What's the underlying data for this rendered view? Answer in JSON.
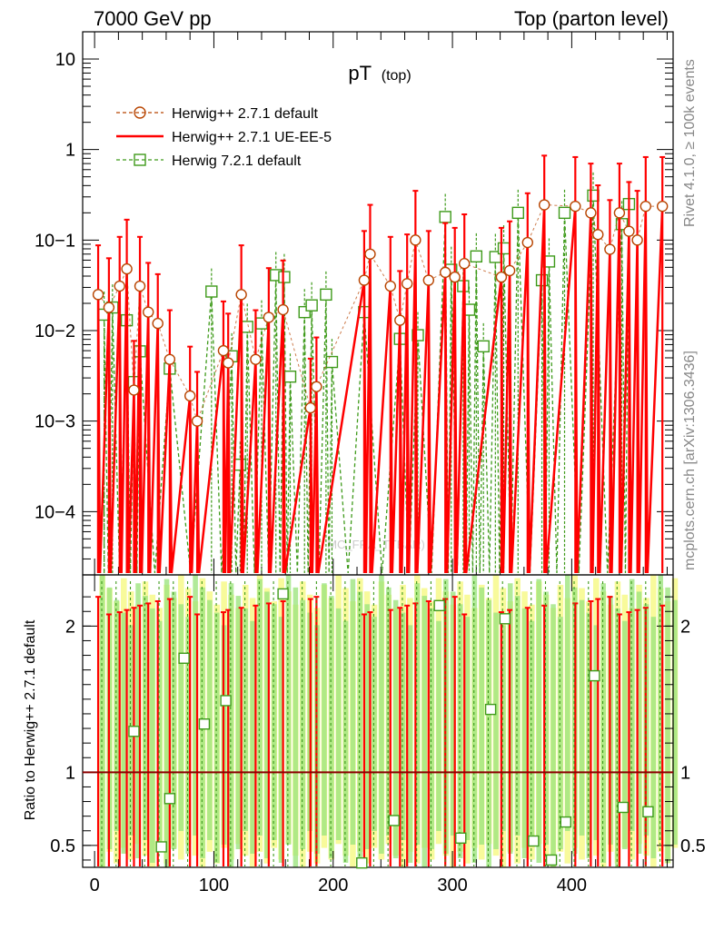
{
  "header": {
    "left": "7000 GeV pp",
    "right": "Top (parton level)"
  },
  "side_labels": {
    "rivet": "Rivet 4.1.0, ≥ 100k events",
    "mcplots": "mcplots.cern.ch [arXiv:1306.3436]"
  },
  "watermark": "MC_FRA_TTBAR)",
  "chart_data": {
    "type": "line",
    "title": "pT",
    "title_sub": "(top)",
    "xlabel": "",
    "ylabel": "",
    "ratio_ylabel": "Ratio to Herwig++ 2.7.1 default",
    "xlim": [
      -10,
      485
    ],
    "ylim": [
      2e-05,
      20
    ],
    "ratio_ylim": [
      0.35,
      2.35
    ],
    "x_ticks": [
      "0",
      "100",
      "200",
      "300",
      "400"
    ],
    "y_ticks": [
      "10",
      "1",
      "10−1",
      "10−2",
      "10−3",
      "10−4"
    ],
    "ratio_ticks": [
      "2",
      "1",
      "0.5"
    ],
    "legend": [
      {
        "label": "Herwig++ 2.7.1 default",
        "style": "dashed-circle",
        "color": "#b84400"
      },
      {
        "label": "Herwig++ 2.7.1 UE-EE-5",
        "style": "solid-line",
        "color": "#ff0000"
      },
      {
        "label": "Herwig 7.2.1 default",
        "style": "dashed-square",
        "color": "#3e9a1a"
      }
    ],
    "series": [
      {
        "name": "Herwig++ 2.7.1 default",
        "points": [
          {
            "x": 3,
            "y": 0.025
          },
          {
            "x": 12,
            "y": 0.018
          },
          {
            "x": 21,
            "y": 0.031
          },
          {
            "x": 27,
            "y": 0.048
          },
          {
            "x": 33,
            "y": 0.0022
          },
          {
            "x": 38,
            "y": 0.031
          },
          {
            "x": 45,
            "y": 0.016
          },
          {
            "x": 53,
            "y": 0.012
          },
          {
            "x": 63,
            "y": 0.0048
          },
          {
            "x": 80,
            "y": 0.0019
          },
          {
            "x": 86,
            "y": 0.001
          },
          {
            "x": 108,
            "y": 0.006
          },
          {
            "x": 112,
            "y": 0.0044
          },
          {
            "x": 123,
            "y": 0.025
          },
          {
            "x": 135,
            "y": 0.0048
          },
          {
            "x": 146,
            "y": 0.014
          },
          {
            "x": 158,
            "y": 0.017
          },
          {
            "x": 181,
            "y": 0.0014
          },
          {
            "x": 186,
            "y": 0.0024
          },
          {
            "x": 226,
            "y": 0.036
          },
          {
            "x": 231,
            "y": 0.07
          },
          {
            "x": 248,
            "y": 0.031
          },
          {
            "x": 256,
            "y": 0.013
          },
          {
            "x": 262,
            "y": 0.033
          },
          {
            "x": 269,
            "y": 0.1
          },
          {
            "x": 280,
            "y": 0.036
          },
          {
            "x": 294,
            "y": 0.044
          },
          {
            "x": 302,
            "y": 0.039
          },
          {
            "x": 310,
            "y": 0.055
          },
          {
            "x": 341,
            "y": 0.039
          },
          {
            "x": 348,
            "y": 0.046
          },
          {
            "x": 363,
            "y": 0.094
          },
          {
            "x": 377,
            "y": 0.245
          },
          {
            "x": 403,
            "y": 0.236
          },
          {
            "x": 416,
            "y": 0.2
          },
          {
            "x": 422,
            "y": 0.115
          },
          {
            "x": 432,
            "y": 0.079
          },
          {
            "x": 440,
            "y": 0.2
          },
          {
            "x": 448,
            "y": 0.125
          },
          {
            "x": 455,
            "y": 0.1
          },
          {
            "x": 462,
            "y": 0.236
          },
          {
            "x": 476,
            "y": 0.236
          }
        ]
      },
      {
        "name": "Herwig++ 2.7.1 UE-EE-5",
        "points": [
          {
            "x": 3,
            "y": 0.025
          },
          {
            "x": 12,
            "y": 0.018
          },
          {
            "x": 21,
            "y": 0.031
          },
          {
            "x": 27,
            "y": 0.048
          },
          {
            "x": 33,
            "y": 0.0022
          },
          {
            "x": 38,
            "y": 0.031
          },
          {
            "x": 45,
            "y": 0.016
          },
          {
            "x": 53,
            "y": 0.012
          },
          {
            "x": 63,
            "y": 0.0048
          },
          {
            "x": 80,
            "y": 0.0019
          },
          {
            "x": 86,
            "y": 0.001
          },
          {
            "x": 108,
            "y": 0.006
          },
          {
            "x": 112,
            "y": 0.0044
          },
          {
            "x": 123,
            "y": 0.025
          },
          {
            "x": 135,
            "y": 0.0048
          },
          {
            "x": 146,
            "y": 0.014
          },
          {
            "x": 158,
            "y": 0.017
          },
          {
            "x": 181,
            "y": 0.0014
          },
          {
            "x": 186,
            "y": 0.0024
          },
          {
            "x": 226,
            "y": 0.036
          },
          {
            "x": 231,
            "y": 0.07
          },
          {
            "x": 248,
            "y": 0.031
          },
          {
            "x": 256,
            "y": 0.013
          },
          {
            "x": 262,
            "y": 0.033
          },
          {
            "x": 269,
            "y": 0.1
          },
          {
            "x": 280,
            "y": 0.036
          },
          {
            "x": 294,
            "y": 0.044
          },
          {
            "x": 302,
            "y": 0.039
          },
          {
            "x": 310,
            "y": 0.055
          },
          {
            "x": 341,
            "y": 0.039
          },
          {
            "x": 348,
            "y": 0.046
          },
          {
            "x": 363,
            "y": 0.094
          },
          {
            "x": 377,
            "y": 0.245
          },
          {
            "x": 403,
            "y": 0.236
          },
          {
            "x": 416,
            "y": 0.2
          },
          {
            "x": 422,
            "y": 0.115
          },
          {
            "x": 432,
            "y": 0.079
          },
          {
            "x": 440,
            "y": 0.2
          },
          {
            "x": 448,
            "y": 0.125
          },
          {
            "x": 455,
            "y": 0.1
          },
          {
            "x": 462,
            "y": 0.236
          },
          {
            "x": 476,
            "y": 0.236
          }
        ]
      },
      {
        "name": "Herwig 7.2.1 default",
        "points": [
          {
            "x": 8,
            "y": 0.015
          },
          {
            "x": 15,
            "y": 0.018
          },
          {
            "x": 27,
            "y": 0.013
          },
          {
            "x": 33,
            "y": 0.0027
          },
          {
            "x": 38,
            "y": 0.0059
          },
          {
            "x": 63,
            "y": 0.0038
          },
          {
            "x": 98,
            "y": 0.027
          },
          {
            "x": 115,
            "y": 0.0052
          },
          {
            "x": 122,
            "y": 0.00033
          },
          {
            "x": 128,
            "y": 0.011
          },
          {
            "x": 140,
            "y": 0.012
          },
          {
            "x": 152,
            "y": 0.041
          },
          {
            "x": 159,
            "y": 0.039
          },
          {
            "x": 164,
            "y": 0.0031
          },
          {
            "x": 176,
            "y": 0.016
          },
          {
            "x": 182,
            "y": 0.019
          },
          {
            "x": 194,
            "y": 0.025
          },
          {
            "x": 199,
            "y": 0.0045
          },
          {
            "x": 226,
            "y": 0.016
          },
          {
            "x": 256,
            "y": 0.0081
          },
          {
            "x": 271,
            "y": 0.0089
          },
          {
            "x": 294,
            "y": 0.18
          },
          {
            "x": 299,
            "y": 0.047
          },
          {
            "x": 309,
            "y": 0.031
          },
          {
            "x": 314,
            "y": 0.017
          },
          {
            "x": 320,
            "y": 0.066
          },
          {
            "x": 326,
            "y": 0.0067
          },
          {
            "x": 336,
            "y": 0.065
          },
          {
            "x": 343,
            "y": 0.081
          },
          {
            "x": 355,
            "y": 0.2
          },
          {
            "x": 375,
            "y": 0.036
          },
          {
            "x": 381,
            "y": 0.058
          },
          {
            "x": 394,
            "y": 0.2
          },
          {
            "x": 418,
            "y": 0.31
          },
          {
            "x": 442,
            "y": 0.15
          },
          {
            "x": 448,
            "y": 0.25
          }
        ]
      }
    ],
    "ratio_points": [
      {
        "x": 33,
        "y": 1.28
      },
      {
        "x": 56,
        "y": 0.49
      },
      {
        "x": 63,
        "y": 0.82
      },
      {
        "x": 75,
        "y": 1.78
      },
      {
        "x": 92,
        "y": 1.33
      },
      {
        "x": 110,
        "y": 1.49
      },
      {
        "x": 158,
        "y": 2.22
      },
      {
        "x": 224,
        "y": 0.38
      },
      {
        "x": 251,
        "y": 0.67
      },
      {
        "x": 289,
        "y": 2.14
      },
      {
        "x": 307,
        "y": 0.55
      },
      {
        "x": 332,
        "y": 1.43
      },
      {
        "x": 344,
        "y": 2.05
      },
      {
        "x": 368,
        "y": 0.53
      },
      {
        "x": 383,
        "y": 0.4
      },
      {
        "x": 395,
        "y": 0.66
      },
      {
        "x": 419,
        "y": 1.66
      },
      {
        "x": 443,
        "y": 0.76
      },
      {
        "x": 464,
        "y": 0.73
      }
    ]
  }
}
